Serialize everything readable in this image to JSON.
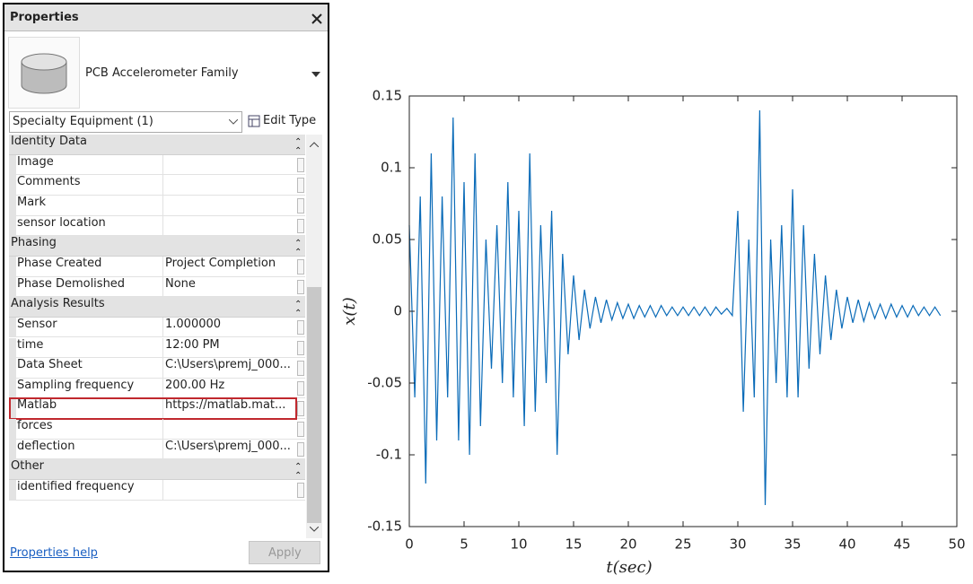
{
  "properties_panel": {
    "title": "Properties",
    "family": "PCB Accelerometer Family",
    "selector": "Specialty Equipment (1)",
    "edit_type": "Edit Type",
    "groups": [
      {
        "name": "Identity Data",
        "rows": [
          {
            "name": "Image"
          },
          {
            "name": "Comments"
          },
          {
            "name": "Mark"
          },
          {
            "name": "sensor location"
          }
        ]
      },
      {
        "name": "Phasing",
        "rows": [
          {
            "name": "Phase Created",
            "value": "Project Completion"
          },
          {
            "name": "Phase Demolished",
            "value": "None"
          }
        ]
      },
      {
        "name": "Analysis Results",
        "rows": [
          {
            "name": "Sensor",
            "value": "1.000000"
          },
          {
            "name": "time",
            "value": "12:00 PM"
          },
          {
            "name": "Data Sheet",
            "value": "C:\\Users\\premj_000..."
          },
          {
            "name": "Sampling frequency",
            "value": "200.00 Hz"
          },
          {
            "name": "Matlab",
            "value": "https://matlab.mat...",
            "highlighted": true
          },
          {
            "name": "forces"
          },
          {
            "name": "deflection",
            "value": "C:\\Users\\premj_000..."
          }
        ]
      },
      {
        "name": "Other",
        "rows": [
          {
            "name": "identified frequency"
          }
        ]
      }
    ],
    "help_link": "Properties help",
    "apply": "Apply"
  },
  "chart_data": {
    "type": "line",
    "xlabel": "t(sec)",
    "ylabel": "x(t)",
    "color": "#0a6bb8",
    "xlim": [
      0,
      50
    ],
    "ylim": [
      -0.15,
      0.15
    ],
    "xticks": [
      0,
      5,
      10,
      15,
      20,
      25,
      30,
      35,
      40,
      45,
      50
    ],
    "yticks": [
      -0.15,
      -0.1,
      -0.05,
      0,
      0.05,
      0.1,
      0.15
    ],
    "x": [
      0,
      0.5,
      1,
      1.5,
      2,
      2.5,
      3,
      3.5,
      4,
      4.5,
      5,
      5.5,
      6,
      6.5,
      7,
      7.5,
      8,
      8.5,
      9,
      9.5,
      10,
      10.5,
      11,
      11.5,
      12,
      12.5,
      13,
      13.5,
      14,
      14.5,
      15,
      15.5,
      16,
      16.5,
      17,
      17.5,
      18,
      18.5,
      19,
      19.5,
      20,
      20.5,
      21,
      21.5,
      22,
      22.5,
      23,
      23.5,
      24,
      24.5,
      25,
      25.5,
      26,
      26.5,
      27,
      27.5,
      28,
      28.5,
      29,
      29.5,
      30,
      30.5,
      31,
      31.5,
      32,
      32.5,
      33,
      33.5,
      34,
      34.5,
      35,
      35.5,
      36,
      36.5,
      37,
      37.5,
      38,
      38.5,
      39,
      39.5,
      40,
      40.5,
      41,
      41.5,
      42,
      42.5,
      43,
      43.5,
      44,
      44.5,
      45,
      45.5,
      46,
      46.5,
      47,
      47.5,
      48,
      48.5
    ],
    "values": [
      0.06,
      -0.06,
      0.08,
      -0.12,
      0.11,
      -0.09,
      0.08,
      -0.06,
      0.135,
      -0.09,
      0.09,
      -0.1,
      0.11,
      -0.08,
      0.05,
      -0.04,
      0.06,
      -0.05,
      0.09,
      -0.06,
      0.07,
      -0.08,
      0.11,
      -0.07,
      0.06,
      -0.05,
      0.07,
      -0.1,
      0.04,
      -0.03,
      0.025,
      -0.02,
      0.015,
      -0.012,
      0.01,
      -0.008,
      0.008,
      -0.006,
      0.006,
      -0.005,
      0.005,
      -0.005,
      0.004,
      -0.004,
      0.004,
      -0.004,
      0.004,
      -0.003,
      0.003,
      -0.003,
      0.003,
      -0.003,
      0.003,
      -0.003,
      0.003,
      -0.003,
      0.003,
      -0.002,
      0.002,
      -0.003,
      0.07,
      -0.07,
      0.05,
      -0.06,
      0.14,
      -0.135,
      0.05,
      -0.05,
      0.06,
      -0.06,
      0.085,
      -0.06,
      0.06,
      -0.04,
      0.04,
      -0.03,
      0.025,
      -0.02,
      0.015,
      -0.012,
      0.01,
      -0.008,
      0.008,
      -0.007,
      0.006,
      -0.005,
      0.005,
      -0.005,
      0.005,
      -0.004,
      0.004,
      -0.004,
      0.004,
      -0.003,
      0.003,
      -0.003,
      0.003,
      -0.003
    ]
  }
}
